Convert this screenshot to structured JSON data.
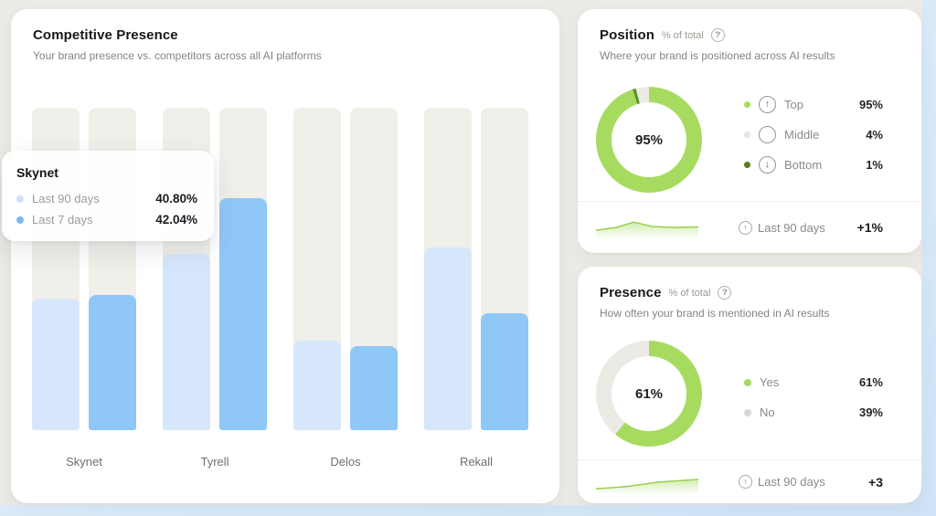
{
  "chart_data": [
    {
      "id": "competitive-bars",
      "type": "bar",
      "title": "Competitive Presence",
      "categories": [
        "Skynet",
        "Tyrell",
        "Delos",
        "Rekall"
      ],
      "series": [
        {
          "name": "Last 90 days",
          "color": "#d7e7fb",
          "values": [
            40.8,
            54.7,
            27.8,
            56.7
          ]
        },
        {
          "name": "Last 7 days",
          "color": "#8fc7f7",
          "values": [
            42.04,
            72.0,
            26.1,
            36.3
          ]
        }
      ],
      "ylim": [
        0,
        100
      ],
      "track_color": "#f0efe9",
      "grid": false,
      "legend_position": "tooltip-only"
    },
    {
      "id": "position-donut",
      "type": "pie",
      "center_label": "95%",
      "draw_order": [
        0,
        2,
        1
      ],
      "segments": [
        {
          "label": "Top",
          "value": 95,
          "value_text": "95%",
          "color": "#a6db60",
          "dot": "#a6db60",
          "icon": "arrow-up-circle"
        },
        {
          "label": "Middle",
          "value": 4,
          "value_text": "4%",
          "color": "#ecebe5",
          "dot": "#e6e5df",
          "icon": "circle-outline"
        },
        {
          "label": "Bottom",
          "value": 1,
          "value_text": "1%",
          "color": "#5f9322",
          "dot": "#55801c",
          "icon": "arrow-down-circle"
        }
      ]
    },
    {
      "id": "presence-donut",
      "type": "pie",
      "center_label": "61%",
      "draw_order": [
        0,
        1
      ],
      "segments": [
        {
          "label": "Yes",
          "value": 61,
          "value_text": "61%",
          "color": "#a6db60",
          "dot": "#a6db60",
          "icon": "dot"
        },
        {
          "label": "No",
          "value": 39,
          "value_text": "39%",
          "color": "#ebeae4",
          "dot": "#d8d7d1",
          "icon": "dot"
        }
      ]
    }
  ],
  "competitive": {
    "title": "Competitive Presence",
    "subtitle": "Your brand presence vs. competitors across all AI platforms",
    "tooltip": {
      "title": "Skynet",
      "rows": [
        {
          "label": "Last 90 days",
          "value": "40.80%",
          "dot": "#cde1fa"
        },
        {
          "label": "Last 7 days",
          "value": "42.04%",
          "dot": "#7cbaf6"
        }
      ]
    }
  },
  "position": {
    "title": "Position",
    "unit": "% of total",
    "help_icon": "question-circle",
    "subtitle": "Where your brand is positioned across AI results",
    "footer": {
      "trend_icon": "arrow-up-circle",
      "label": "Last 90 days",
      "value": "+1%",
      "spark": [
        [
          0,
          0.62
        ],
        [
          0.2,
          0.5
        ],
        [
          0.37,
          0.28
        ],
        [
          0.55,
          0.46
        ],
        [
          0.75,
          0.5
        ],
        [
          1,
          0.48
        ]
      ]
    }
  },
  "presence": {
    "title": "Presence",
    "unit": "% of total",
    "help_icon": "question-circle",
    "subtitle": "How often your brand is mentioned in AI results",
    "footer": {
      "trend_icon": "arrow-up-circle",
      "label": "Last 90 days",
      "value": "+3",
      "spark": [
        [
          0,
          0.78
        ],
        [
          0.3,
          0.68
        ],
        [
          0.6,
          0.5
        ],
        [
          1,
          0.38
        ]
      ]
    }
  }
}
